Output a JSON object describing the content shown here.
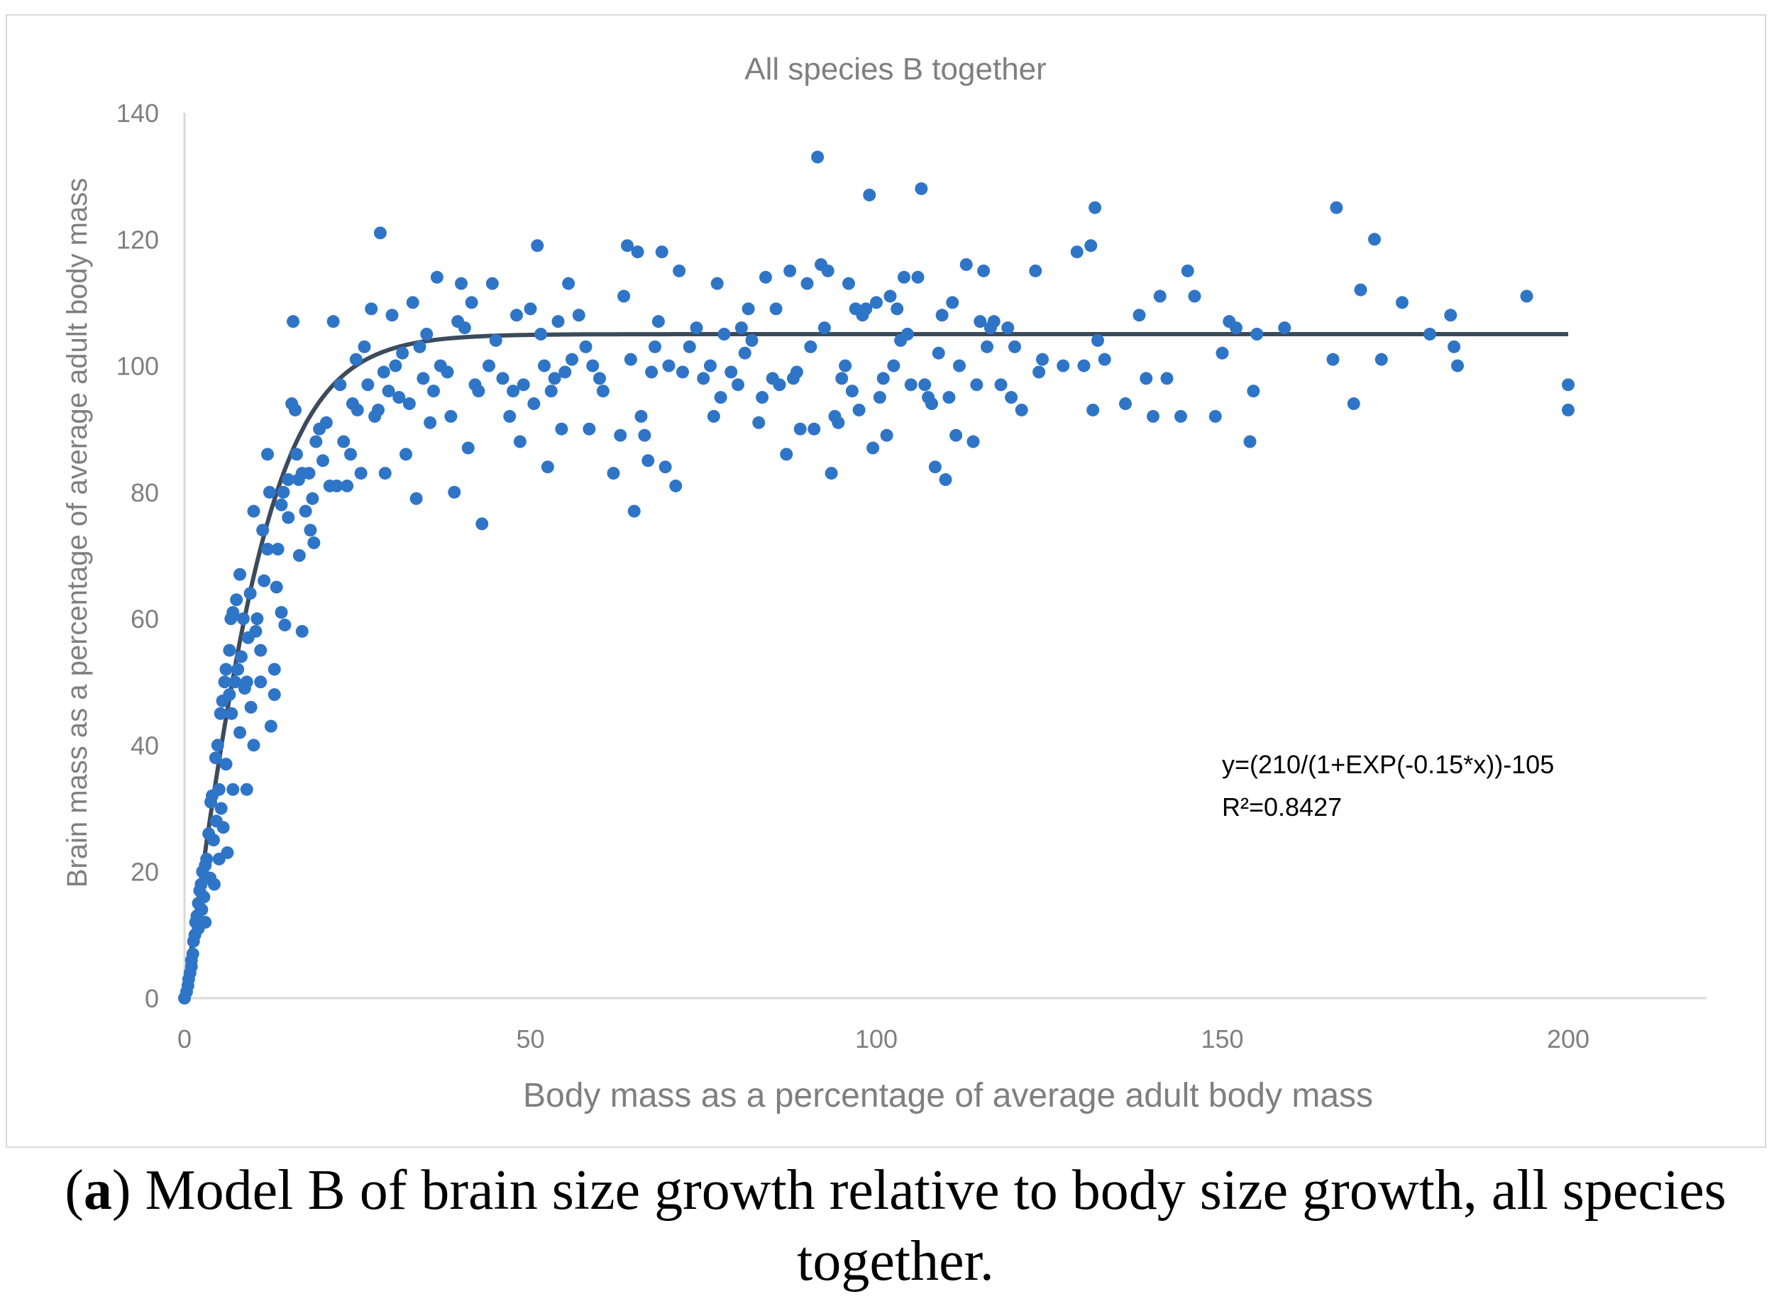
{
  "caption": {
    "label": "a",
    "open": "(",
    "close": ")",
    "text": " Model B of brain size growth relative to body size growth, all species together."
  },
  "chart_data": {
    "type": "scatter",
    "title": "All species B together",
    "xlabel": "Body mass as a percentage of average adult body mass",
    "ylabel": "Brain mass as a percentage of average adult body mass",
    "xlim": [
      0,
      220
    ],
    "ylim": [
      0,
      140
    ],
    "xticks": [
      0,
      50,
      100,
      150,
      200
    ],
    "yticks": [
      0,
      20,
      40,
      60,
      80,
      100,
      120,
      140
    ],
    "grid": false,
    "point_color": "#2f75c7",
    "curve_color": "#3b4b5c",
    "axis_color": "#d9d9d9",
    "text_color": "#7f7f7f",
    "trendline": {
      "formula": "y=(210/(1+EXP(-0.15*x))-105",
      "r2_label": "R²=0.8427",
      "a": 210,
      "k": 0.15,
      "c": 105,
      "x_range": [
        0,
        200
      ]
    },
    "series": [
      {
        "name": "All species",
        "points": [
          [
            0,
            0
          ],
          [
            0.3,
            1
          ],
          [
            0.5,
            2
          ],
          [
            0.6,
            3
          ],
          [
            0.8,
            4
          ],
          [
            1,
            5
          ],
          [
            1,
            6
          ],
          [
            1.2,
            7
          ],
          [
            1.3,
            9
          ],
          [
            1.5,
            10
          ],
          [
            1.6,
            12
          ],
          [
            1.8,
            13
          ],
          [
            2,
            15
          ],
          [
            2,
            11
          ],
          [
            2.2,
            17
          ],
          [
            2.4,
            18
          ],
          [
            2.5,
            14
          ],
          [
            2.6,
            20
          ],
          [
            2.8,
            16
          ],
          [
            3,
            21
          ],
          [
            3,
            12
          ],
          [
            3.2,
            22
          ],
          [
            3.5,
            26
          ],
          [
            3.7,
            19
          ],
          [
            3.8,
            31
          ],
          [
            4,
            32
          ],
          [
            4.2,
            25
          ],
          [
            4.3,
            18
          ],
          [
            4.5,
            38
          ],
          [
            4.6,
            28
          ],
          [
            4.8,
            40
          ],
          [
            5,
            33
          ],
          [
            5,
            22
          ],
          [
            5.2,
            45
          ],
          [
            5.3,
            30
          ],
          [
            5.5,
            47
          ],
          [
            5.6,
            27
          ],
          [
            5.8,
            50
          ],
          [
            6,
            52
          ],
          [
            6,
            37
          ],
          [
            6.2,
            23
          ],
          [
            6.5,
            55
          ],
          [
            6.5,
            48
          ],
          [
            6.7,
            60
          ],
          [
            6.8,
            45
          ],
          [
            7,
            33
          ],
          [
            7,
            61
          ],
          [
            7.3,
            50
          ],
          [
            7.5,
            63
          ],
          [
            7.7,
            52
          ],
          [
            8,
            67
          ],
          [
            8,
            42
          ],
          [
            8.2,
            54
          ],
          [
            8.5,
            60
          ],
          [
            8.7,
            49
          ],
          [
            9,
            50
          ],
          [
            9,
            33
          ],
          [
            9.2,
            57
          ],
          [
            9.5,
            64
          ],
          [
            9.6,
            46
          ],
          [
            10,
            77
          ],
          [
            10,
            40
          ],
          [
            10.3,
            58
          ],
          [
            10.5,
            60
          ],
          [
            11,
            50
          ],
          [
            11,
            55
          ],
          [
            11.3,
            74
          ],
          [
            11.5,
            66
          ],
          [
            12,
            71
          ],
          [
            12,
            86
          ],
          [
            12.3,
            80
          ],
          [
            12.5,
            43
          ],
          [
            13,
            52
          ],
          [
            13,
            48
          ],
          [
            13.3,
            65
          ],
          [
            13.5,
            71
          ],
          [
            14,
            78
          ],
          [
            14,
            61
          ],
          [
            14.3,
            80
          ],
          [
            14.5,
            59
          ],
          [
            15,
            82
          ],
          [
            15,
            76
          ],
          [
            15.5,
            94
          ],
          [
            15.7,
            107
          ],
          [
            16,
            93
          ],
          [
            16.2,
            86
          ],
          [
            16.5,
            82
          ],
          [
            16.6,
            70
          ],
          [
            17,
            83
          ],
          [
            17,
            58
          ],
          [
            17.5,
            77
          ],
          [
            18,
            83
          ],
          [
            18.2,
            74
          ],
          [
            18.5,
            79
          ],
          [
            18.7,
            72
          ],
          [
            19,
            88
          ],
          [
            19.5,
            90
          ],
          [
            20,
            85
          ],
          [
            20.5,
            91
          ],
          [
            21,
            81
          ],
          [
            21.5,
            107
          ],
          [
            22,
            81
          ],
          [
            22.5,
            97
          ],
          [
            23,
            88
          ],
          [
            23.5,
            81
          ],
          [
            24,
            86
          ],
          [
            24.3,
            94
          ],
          [
            24.8,
            101
          ],
          [
            25,
            93
          ],
          [
            25.5,
            83
          ],
          [
            26,
            103
          ],
          [
            26.5,
            97
          ],
          [
            27,
            109
          ],
          [
            27.5,
            92
          ],
          [
            28,
            93
          ],
          [
            28.3,
            121
          ],
          [
            28.8,
            99
          ],
          [
            29,
            83
          ],
          [
            29.5,
            96
          ],
          [
            30,
            108
          ],
          [
            30.5,
            100
          ],
          [
            31,
            95
          ],
          [
            31.5,
            102
          ],
          [
            32,
            86
          ],
          [
            32.5,
            94
          ],
          [
            33,
            110
          ],
          [
            33.5,
            79
          ],
          [
            34,
            103
          ],
          [
            34.5,
            98
          ],
          [
            35,
            105
          ],
          [
            35.5,
            91
          ],
          [
            36,
            96
          ],
          [
            36.5,
            114
          ],
          [
            37,
            100
          ],
          [
            38,
            99
          ],
          [
            38.5,
            92
          ],
          [
            39,
            80
          ],
          [
            39.5,
            107
          ],
          [
            40,
            113
          ],
          [
            40.5,
            106
          ],
          [
            41,
            87
          ],
          [
            41.5,
            110
          ],
          [
            42,
            97
          ],
          [
            42.5,
            96
          ],
          [
            43,
            75
          ],
          [
            44,
            100
          ],
          [
            44.5,
            113
          ],
          [
            45,
            104
          ],
          [
            46,
            98
          ],
          [
            47,
            92
          ],
          [
            47.5,
            96
          ],
          [
            48,
            108
          ],
          [
            48.5,
            88
          ],
          [
            49,
            97
          ],
          [
            50,
            109
          ],
          [
            50.5,
            94
          ],
          [
            51,
            119
          ],
          [
            51.5,
            105
          ],
          [
            52,
            100
          ],
          [
            52.5,
            84
          ],
          [
            53,
            96
          ],
          [
            53.5,
            98
          ],
          [
            54,
            107
          ],
          [
            54.5,
            90
          ],
          [
            55,
            99
          ],
          [
            55.5,
            113
          ],
          [
            56,
            101
          ],
          [
            57,
            108
          ],
          [
            58,
            103
          ],
          [
            58.5,
            90
          ],
          [
            59,
            100
          ],
          [
            60,
            98
          ],
          [
            60.5,
            96
          ],
          [
            62,
            83
          ],
          [
            63,
            89
          ],
          [
            63.5,
            111
          ],
          [
            64,
            119
          ],
          [
            64.5,
            101
          ],
          [
            65,
            77
          ],
          [
            65.5,
            118
          ],
          [
            66,
            92
          ],
          [
            66.5,
            89
          ],
          [
            67,
            85
          ],
          [
            67.5,
            99
          ],
          [
            68,
            103
          ],
          [
            68.5,
            107
          ],
          [
            69,
            118
          ],
          [
            69.5,
            84
          ],
          [
            70,
            100
          ],
          [
            71,
            81
          ],
          [
            71.5,
            115
          ],
          [
            72,
            99
          ],
          [
            73,
            103
          ],
          [
            74,
            106
          ],
          [
            75,
            98
          ],
          [
            76,
            100
          ],
          [
            76.5,
            92
          ],
          [
            77,
            113
          ],
          [
            77.5,
            95
          ],
          [
            78,
            105
          ],
          [
            79,
            99
          ],
          [
            80,
            97
          ],
          [
            80.5,
            106
          ],
          [
            81,
            102
          ],
          [
            81.5,
            109
          ],
          [
            82,
            104
          ],
          [
            83,
            91
          ],
          [
            83.5,
            95
          ],
          [
            84,
            114
          ],
          [
            85,
            98
          ],
          [
            85.5,
            109
          ],
          [
            86,
            97
          ],
          [
            87,
            86
          ],
          [
            87.5,
            115
          ],
          [
            88,
            98
          ],
          [
            88.5,
            99
          ],
          [
            89,
            90
          ],
          [
            90,
            113
          ],
          [
            90.5,
            103
          ],
          [
            91,
            90
          ],
          [
            91.5,
            133
          ],
          [
            92,
            116
          ],
          [
            92.5,
            106
          ],
          [
            93,
            115
          ],
          [
            93.5,
            83
          ],
          [
            94,
            92
          ],
          [
            94.5,
            91
          ],
          [
            95,
            98
          ],
          [
            95.5,
            100
          ],
          [
            96,
            113
          ],
          [
            96.5,
            96
          ],
          [
            97,
            109
          ],
          [
            97.5,
            93
          ],
          [
            98,
            108
          ],
          [
            98.5,
            109
          ],
          [
            99,
            127
          ],
          [
            99.5,
            87
          ],
          [
            100,
            110
          ],
          [
            100.5,
            95
          ],
          [
            101,
            98
          ],
          [
            101.5,
            89
          ],
          [
            102,
            111
          ],
          [
            102.5,
            100
          ],
          [
            103,
            109
          ],
          [
            103.5,
            104
          ],
          [
            104,
            114
          ],
          [
            104.5,
            105
          ],
          [
            105,
            97
          ],
          [
            106,
            114
          ],
          [
            106.5,
            128
          ],
          [
            107,
            97
          ],
          [
            107.5,
            95
          ],
          [
            108,
            94
          ],
          [
            108.5,
            84
          ],
          [
            109,
            102
          ],
          [
            109.5,
            108
          ],
          [
            110,
            82
          ],
          [
            110.5,
            95
          ],
          [
            111,
            110
          ],
          [
            111.5,
            89
          ],
          [
            112,
            100
          ],
          [
            113,
            116
          ],
          [
            114,
            88
          ],
          [
            114.5,
            97
          ],
          [
            115,
            107
          ],
          [
            115.5,
            115
          ],
          [
            116,
            103
          ],
          [
            116.5,
            106
          ],
          [
            117,
            107
          ],
          [
            118,
            97
          ],
          [
            119,
            106
          ],
          [
            119.5,
            95
          ],
          [
            120,
            103
          ],
          [
            121,
            93
          ],
          [
            123,
            115
          ],
          [
            123.5,
            99
          ],
          [
            124,
            101
          ],
          [
            127,
            100
          ],
          [
            129,
            118
          ],
          [
            130,
            100
          ],
          [
            131,
            119
          ],
          [
            131.3,
            93
          ],
          [
            131.6,
            125
          ],
          [
            132,
            104
          ],
          [
            133,
            101
          ],
          [
            136,
            94
          ],
          [
            138,
            108
          ],
          [
            139,
            98
          ],
          [
            140,
            92
          ],
          [
            141,
            111
          ],
          [
            142,
            98
          ],
          [
            144,
            92
          ],
          [
            145,
            115
          ],
          [
            146,
            111
          ],
          [
            149,
            92
          ],
          [
            150,
            102
          ],
          [
            151,
            107
          ],
          [
            152,
            106
          ],
          [
            154,
            88
          ],
          [
            154.5,
            96
          ],
          [
            155,
            105
          ],
          [
            159,
            106
          ],
          [
            166,
            101
          ],
          [
            166.5,
            125
          ],
          [
            169,
            94
          ],
          [
            170,
            112
          ],
          [
            172,
            120
          ],
          [
            173,
            101
          ],
          [
            176,
            110
          ],
          [
            180,
            105
          ],
          [
            183,
            108
          ],
          [
            183.5,
            103
          ],
          [
            184,
            100
          ],
          [
            194,
            111
          ],
          [
            200,
            97
          ],
          [
            200,
            93
          ]
        ]
      }
    ]
  }
}
